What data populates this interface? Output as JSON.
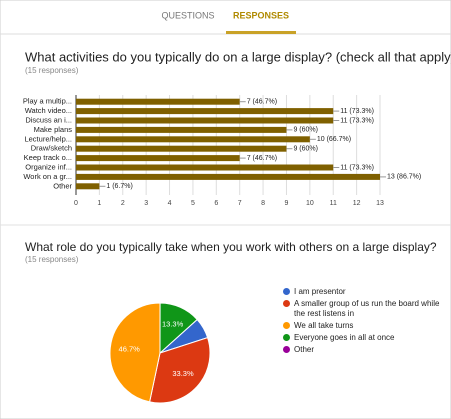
{
  "tabs": [
    "QUESTIONS",
    "RESPONSES"
  ],
  "chart_data": [
    {
      "type": "hbar",
      "title": "What activities do you typically do on a large display? (check all that apply)",
      "subtitle": "(15 responses)",
      "categories": [
        "Play a multip...",
        "Watch video...",
        "Discuss an i...",
        "Make plans",
        "Lecture/help...",
        "Draw/sketch",
        "Keep track o...",
        "Organize inf...",
        "Work on a gr...",
        "Other"
      ],
      "values": [
        7,
        11,
        11,
        9,
        10,
        9,
        7,
        11,
        13,
        1
      ],
      "value_labels": [
        "7 (46.7%)",
        "11 (73.3%)",
        "11 (73.3%)",
        "9 (60%)",
        "10 (66.7%)",
        "9 (60%)",
        "7 (46.7%)",
        "11 (73.3%)",
        "13 (86.7%)",
        "1 (6.7%)"
      ],
      "color": "#7f6000",
      "xlim": [
        0,
        13
      ],
      "xticks": [
        0,
        1,
        2,
        3,
        4,
        5,
        6,
        7,
        8,
        9,
        10,
        11,
        12,
        13
      ]
    },
    {
      "type": "pie",
      "title": "What role do you typically take when you work with others on a large display?",
      "subtitle": "(15 responses)",
      "categories": [
        "I am presentor",
        "A smaller group of us run the board while the rest listens in",
        "We all take turns",
        "Everyone goes in all at once",
        "Other"
      ],
      "values": [
        6.7,
        33.3,
        46.7,
        13.3,
        0
      ],
      "value_labels": [
        null,
        "33.3%",
        "46.7%",
        "13.3%",
        null
      ],
      "colors": [
        "#3366cc",
        "#dc3912",
        "#ff9900",
        "#109618",
        "#990099"
      ]
    }
  ]
}
